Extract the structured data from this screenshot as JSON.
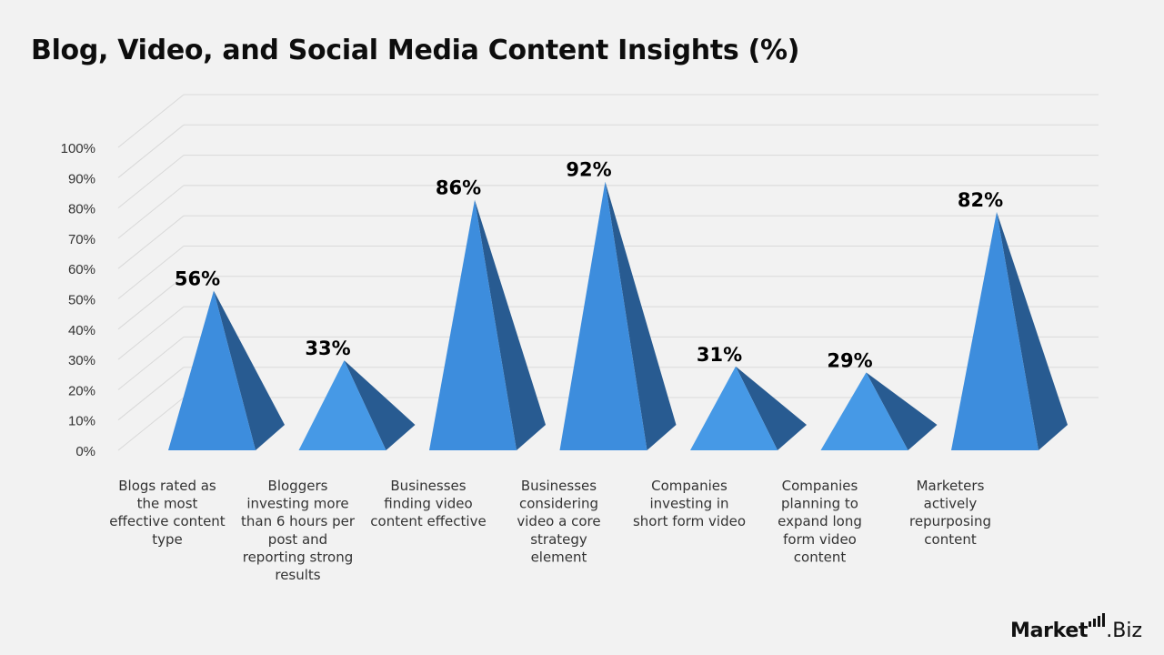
{
  "title": "Blog, Video, and Social Media Content Insights (%)",
  "chart_data": {
    "type": "bar",
    "title": "Blog, Video, and Social Media Content Insights (%)",
    "categories": [
      "Blogs rated as the most effective content type",
      "Bloggers investing more than 6 hours per post and reporting strong results",
      "Businesses finding video content effective",
      "Businesses considering video a core strategy element",
      "Companies investing in short form video",
      "Companies planning to expand long form video content",
      "Marketers actively repurposing content"
    ],
    "category_lines": [
      [
        "Blogs rated as",
        "the most",
        "effective content",
        "type"
      ],
      [
        "Bloggers",
        "investing more",
        "than 6 hours per",
        "post and",
        "reporting strong",
        "results"
      ],
      [
        "Businesses",
        "finding video",
        "content effective"
      ],
      [
        "Businesses",
        "considering",
        "video a core",
        "strategy",
        "element"
      ],
      [
        "Companies",
        "investing in",
        "short form video"
      ],
      [
        "Companies",
        "planning to",
        "expand long",
        "form video",
        "content"
      ],
      [
        "Marketers",
        "actively",
        "repurposing",
        "content"
      ]
    ],
    "values": [
      56,
      33,
      86,
      92,
      31,
      29,
      82
    ],
    "data_labels": [
      "56%",
      "33%",
      "86%",
      "92%",
      "31%",
      "29%",
      "82%"
    ],
    "ylim": [
      0,
      100
    ],
    "y_ticks": [
      "0%",
      "10%",
      "20%",
      "30%",
      "40%",
      "50%",
      "60%",
      "70%",
      "80%",
      "90%",
      "100%"
    ],
    "xlabel": "",
    "ylabel": "",
    "grid": true,
    "style": "3d-pyramid",
    "colors": {
      "face_tall": "#3d8ddd",
      "face_short": "#4699e6",
      "side": "#285b91",
      "grid": "#d9d9d9",
      "text": "#333333",
      "label": "#000000"
    }
  },
  "logo": {
    "brand": "Market",
    "suffix": ".Biz"
  }
}
